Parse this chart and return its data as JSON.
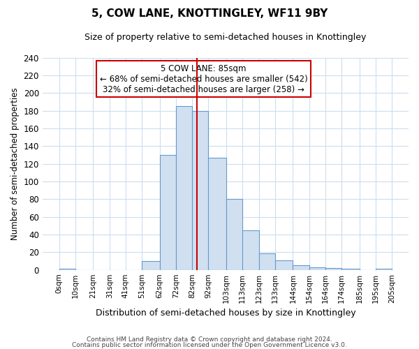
{
  "title": "5, COW LANE, KNOTTINGLEY, WF11 9BY",
  "subtitle": "Size of property relative to semi-detached houses in Knottingley",
  "xlabel": "Distribution of semi-detached houses by size in Knottingley",
  "ylabel": "Number of semi-detached properties",
  "footnote1": "Contains HM Land Registry data © Crown copyright and database right 2024.",
  "footnote2": "Contains public sector information licensed under the Open Government Licence v3.0.",
  "bin_labels": [
    "0sqm",
    "10sqm",
    "21sqm",
    "31sqm",
    "41sqm",
    "51sqm",
    "62sqm",
    "72sqm",
    "82sqm",
    "92sqm",
    "103sqm",
    "113sqm",
    "123sqm",
    "133sqm",
    "144sqm",
    "154sqm",
    "164sqm",
    "174sqm",
    "185sqm",
    "195sqm",
    "205sqm"
  ],
  "bar_heights": [
    1,
    0,
    0,
    0,
    0,
    10,
    130,
    185,
    180,
    127,
    80,
    45,
    19,
    11,
    5,
    3,
    2,
    1,
    0,
    1
  ],
  "bar_color": "#d0e0f0",
  "bar_edge_color": "#6699cc",
  "annotation_title": "5 COW LANE: 85sqm",
  "annotation_line1": "← 68% of semi-detached houses are smaller (542)",
  "annotation_line2": "32% of semi-detached houses are larger (258) →",
  "vline_x": 85,
  "vline_color": "#cc0000",
  "annotation_box_color": "#cc0000",
  "ylim": [
    0,
    240
  ],
  "yticks": [
    0,
    20,
    40,
    60,
    80,
    100,
    120,
    140,
    160,
    180,
    200,
    220,
    240
  ],
  "bg_color": "#ffffff",
  "plot_bg_color": "#ffffff",
  "grid_color": "#ccddee"
}
